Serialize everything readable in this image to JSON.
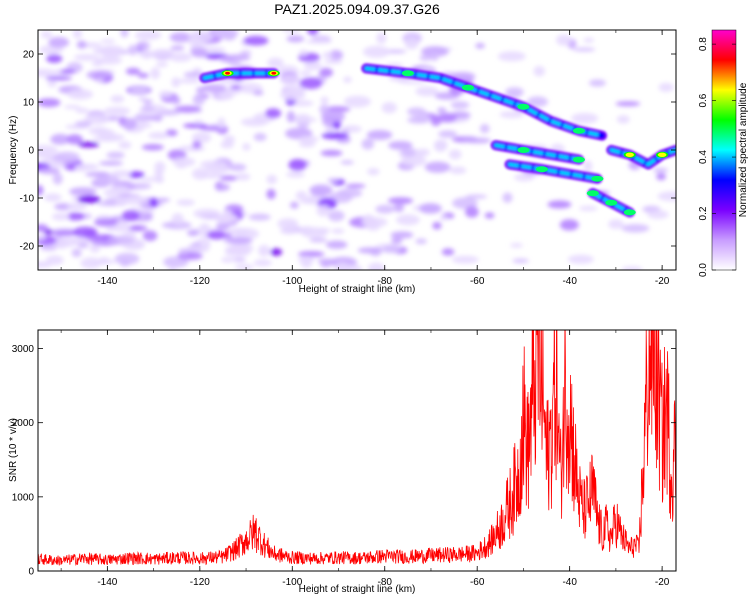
{
  "title": "PAZ1.2025.094.09.37.G26",
  "chart_data": [
    {
      "type": "heatmap",
      "xlabel": "Height of straight line (km)",
      "ylabel": "Frequency (Hz)",
      "xlim": [
        -155,
        -17
      ],
      "ylim": [
        -25,
        25
      ],
      "x_ticks": [
        -140,
        -120,
        -100,
        -80,
        -60,
        -40,
        -20
      ],
      "y_ticks": [
        -20,
        -10,
        0,
        10,
        20
      ],
      "colorbar": {
        "label": "Normalized spectral amplitude",
        "range": [
          0,
          0.85
        ],
        "ticks": [
          0.0,
          0.2,
          0.4,
          0.6,
          0.8
        ],
        "colors": [
          "#ffffff",
          "#c89cff",
          "#7a00ff",
          "#0000ff",
          "#00ffff",
          "#00ff00",
          "#ffff00",
          "#ff0000",
          "#ff00cc"
        ]
      },
      "ridges": [
        {
          "x": [
            -119,
            -114,
            -108,
            -104
          ],
          "y": [
            15,
            16,
            16,
            16
          ],
          "amplitude": 0.6
        },
        {
          "x": [
            -84,
            -75,
            -68,
            -62,
            -56,
            -50,
            -44,
            -38,
            -33
          ],
          "y": [
            17,
            16,
            15,
            13,
            11,
            9,
            6,
            4,
            3
          ],
          "amplitude": 0.4
        },
        {
          "x": [
            -56,
            -50,
            -44,
            -38
          ],
          "y": [
            1,
            0,
            -1,
            -2
          ],
          "amplitude": 0.3
        },
        {
          "x": [
            -53,
            -46,
            -40,
            -34
          ],
          "y": [
            -3,
            -4,
            -5,
            -6
          ],
          "amplitude": 0.3
        },
        {
          "x": [
            -31,
            -27,
            -23,
            -20,
            -17
          ],
          "y": [
            0,
            -1,
            -3,
            -1,
            0
          ],
          "amplitude": 0.5
        },
        {
          "x": [
            -35,
            -31,
            -27
          ],
          "y": [
            -9,
            -11,
            -13
          ],
          "amplitude": 0.3
        }
      ]
    },
    {
      "type": "line",
      "xlabel": "Height of straight line (km)",
      "ylabel": "SNR (10 * v/v)",
      "xlim": [
        -155,
        -17
      ],
      "ylim": [
        0,
        3250
      ],
      "x_ticks": [
        -140,
        -120,
        -100,
        -80,
        -60,
        -40,
        -20
      ],
      "y_ticks": [
        0,
        1000,
        2000,
        3000
      ],
      "line_color": "#ff0000",
      "series": [
        {
          "x": [
            -155,
            -150,
            -145,
            -140,
            -135,
            -130,
            -125,
            -120,
            -115,
            -112,
            -110,
            -108,
            -106,
            -104,
            -100,
            -95,
            -90,
            -85,
            -80,
            -75,
            -70,
            -65,
            -60,
            -57,
            -55,
            -53,
            -51,
            -50,
            -49,
            -48,
            -47,
            -46,
            -45,
            -44,
            -43,
            -42,
            -41,
            -40,
            -39,
            -38,
            -37,
            -36,
            -35,
            -34,
            -33,
            -32,
            -31,
            -30,
            -29,
            -28,
            -27,
            -26,
            -25,
            -24,
            -23,
            -22,
            -21,
            -20,
            -19,
            -18,
            -17
          ],
          "y": [
            160,
            140,
            170,
            150,
            175,
            160,
            180,
            170,
            190,
            300,
            420,
            530,
            350,
            230,
            180,
            170,
            180,
            175,
            200,
            190,
            210,
            220,
            240,
            400,
            600,
            900,
            1300,
            2100,
            1600,
            2300,
            2900,
            2600,
            1500,
            1800,
            2700,
            1200,
            2500,
            2200,
            1500,
            1000,
            800,
            900,
            1100,
            700,
            500,
            600,
            450,
            700,
            500,
            400,
            300,
            350,
            300,
            1500,
            2800,
            3150,
            2500,
            1800,
            2200,
            1300,
            1800
          ]
        }
      ]
    }
  ]
}
